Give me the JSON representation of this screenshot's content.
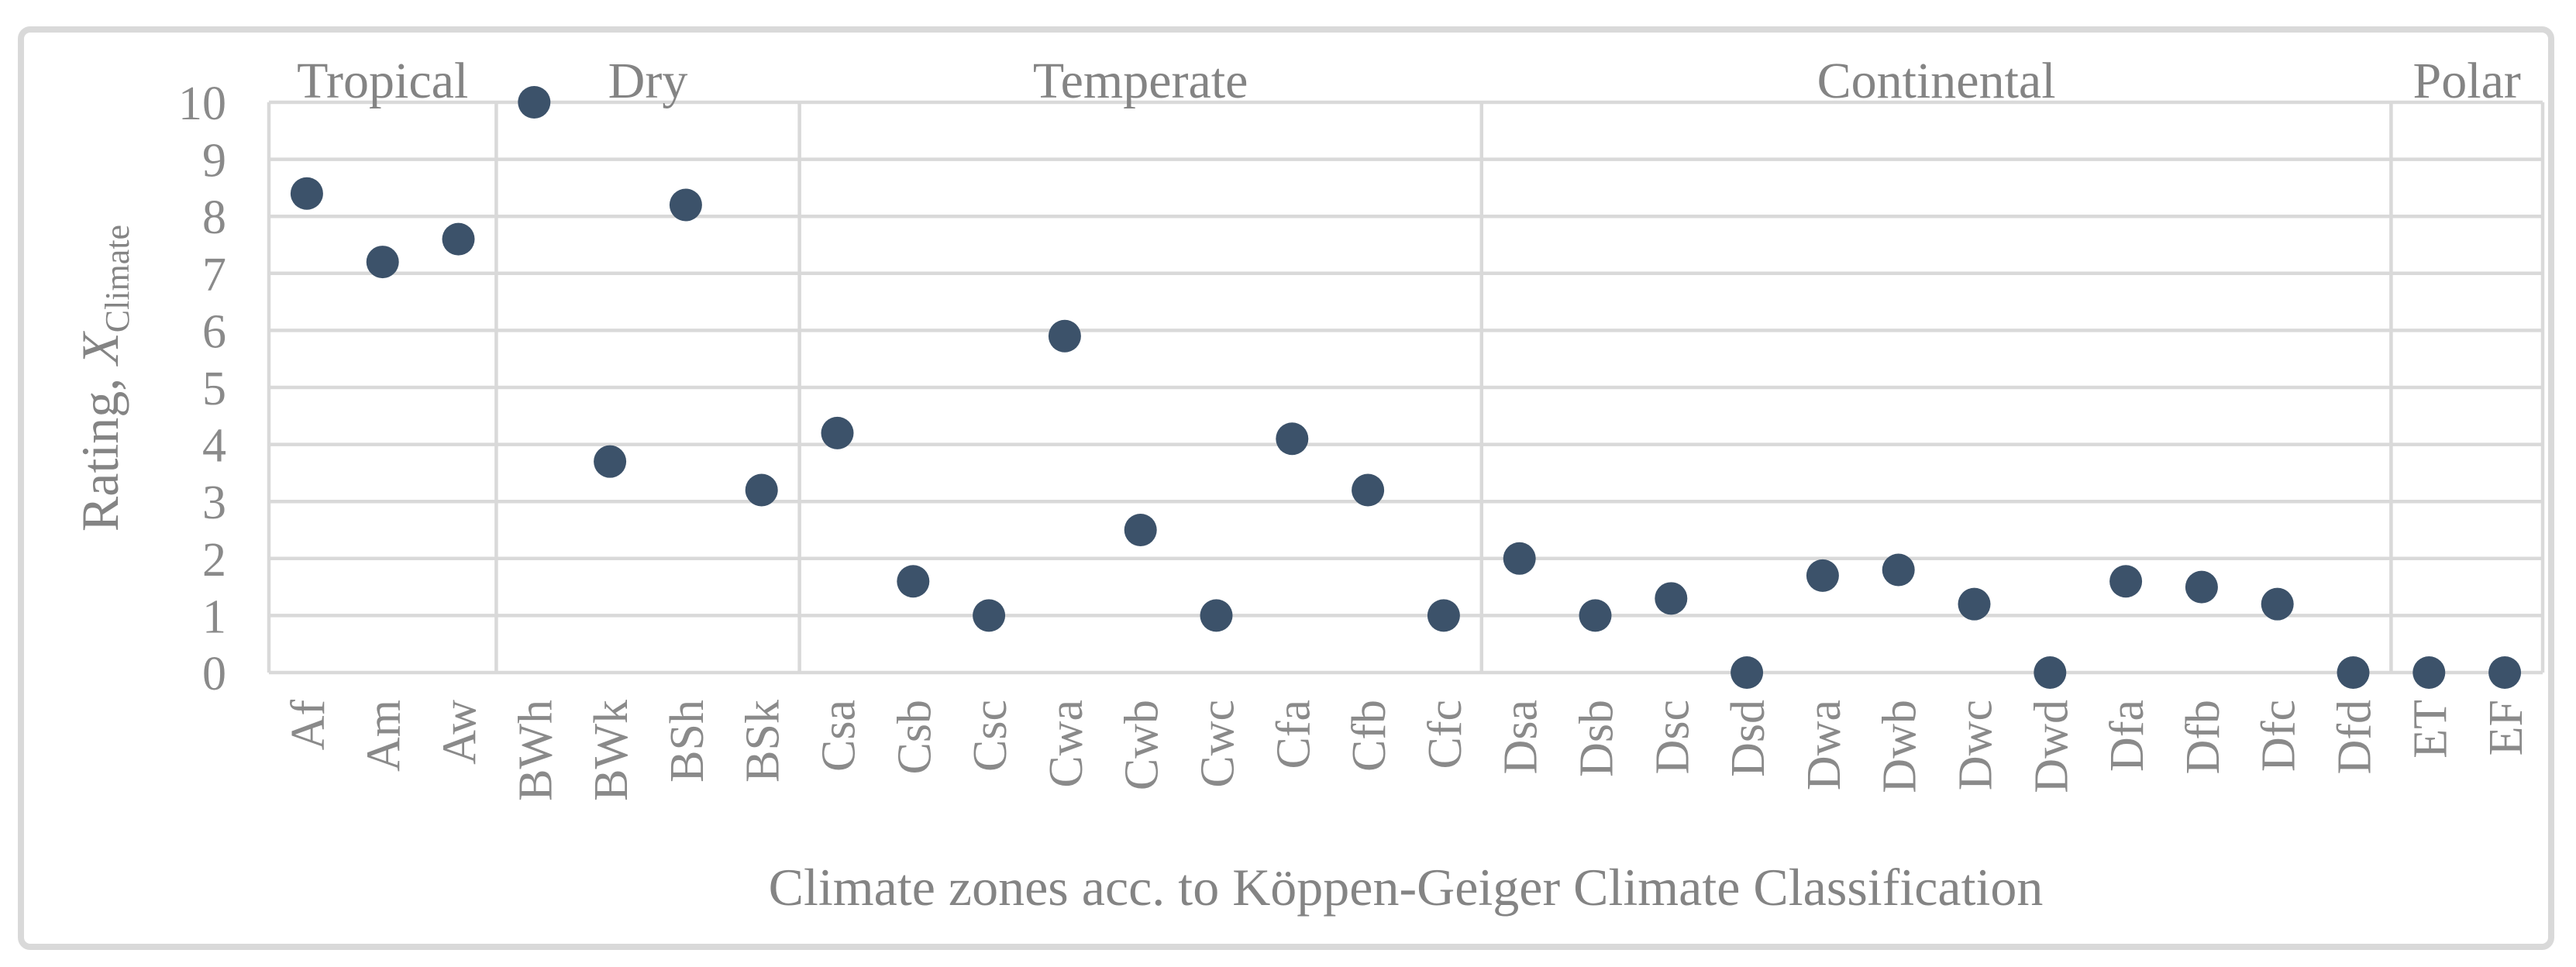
{
  "figure": {
    "kind": "scatter-chart-figure",
    "background": "#ffffff",
    "border_color": "#d9d9d9"
  },
  "chart_data": {
    "type": "scatter",
    "title": "",
    "xlabel": "Climate zones acc. to Köppen-Geiger Climate Classification",
    "ylabel_prefix": "Rating, ",
    "ylabel_symbol": "X",
    "ylabel_subscript": "Climate",
    "ylim": [
      0,
      10
    ],
    "y_ticks": [
      0,
      1,
      2,
      3,
      4,
      5,
      6,
      7,
      8,
      9,
      10
    ],
    "grid": true,
    "legend": "none",
    "categories": [
      "Af",
      "Am",
      "Aw",
      "BWh",
      "BWk",
      "BSh",
      "BSk",
      "Csa",
      "Csb",
      "Csc",
      "Cwa",
      "Cwb",
      "Cwc",
      "Cfa",
      "Cfb",
      "Cfc",
      "Dsa",
      "Dsb",
      "Dsc",
      "Dsd",
      "Dwa",
      "Dwb",
      "Dwc",
      "Dwd",
      "Dfa",
      "Dfb",
      "Dfc",
      "Dfd",
      "ET",
      "EF"
    ],
    "values": [
      8.4,
      7.2,
      7.6,
      10,
      3.7,
      8.2,
      3.2,
      4.2,
      1.6,
      1.0,
      5.9,
      2.5,
      1.0,
      4.1,
      3.2,
      1.0,
      2.0,
      1.0,
      1.3,
      0,
      1.7,
      1.8,
      1.2,
      0,
      1.6,
      1.5,
      1.2,
      0,
      0,
      0
    ],
    "groups": [
      {
        "label": "Tropical",
        "count": 3
      },
      {
        "label": "Dry",
        "count": 4
      },
      {
        "label": "Temperate",
        "count": 9
      },
      {
        "label": "Continental",
        "count": 12
      },
      {
        "label": "Polar",
        "count": 2
      }
    ],
    "colors": {
      "marker": "#3c526a",
      "grid": "#d9d9d9",
      "frame": "#d9d9d9",
      "text": "#8a8a8a",
      "title_text": "#848484"
    }
  }
}
